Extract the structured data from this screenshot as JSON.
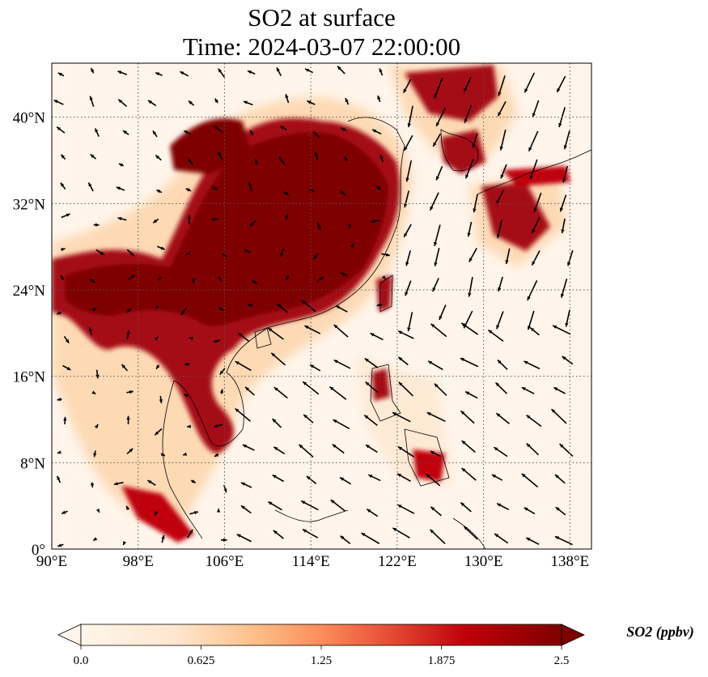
{
  "title": {
    "line1": "SO2 at surface",
    "line2": "Time: 2024-03-07 22:00:00"
  },
  "map": {
    "lon_range": [
      90,
      140
    ],
    "lat_range": [
      0,
      45
    ],
    "lon_ticks": [
      {
        "value": 90,
        "label": "90°E"
      },
      {
        "value": 98,
        "label": "98°E"
      },
      {
        "value": 106,
        "label": "106°E"
      },
      {
        "value": 114,
        "label": "114°E"
      },
      {
        "value": 122,
        "label": "122°E"
      },
      {
        "value": 130,
        "label": "130°E"
      },
      {
        "value": 138,
        "label": "138°E"
      }
    ],
    "lat_ticks": [
      {
        "value": 0,
        "label": "0°"
      },
      {
        "value": 8,
        "label": "8°N"
      },
      {
        "value": 16,
        "label": "16°N"
      },
      {
        "value": 24,
        "label": "24°N"
      },
      {
        "value": 32,
        "label": "32°N"
      },
      {
        "value": 40,
        "label": "40°N"
      }
    ],
    "colors": {
      "background": "#fff5eb",
      "low": "#fdd0a2",
      "mid": "#f16913",
      "high": "#a50f15",
      "max": "#7f0000",
      "gridline": "#555555",
      "coastline": "#000000"
    }
  },
  "colorbar": {
    "label": "SO2 (ppbv)",
    "min": 0.0,
    "max": 2.5,
    "ticks": [
      {
        "value": 0.0,
        "label": "0.0"
      },
      {
        "value": 0.625,
        "label": "0.625"
      },
      {
        "value": 1.25,
        "label": "1.25"
      },
      {
        "value": 1.875,
        "label": "1.875"
      },
      {
        "value": 2.5,
        "label": "2.5"
      }
    ],
    "extend": "both"
  }
}
